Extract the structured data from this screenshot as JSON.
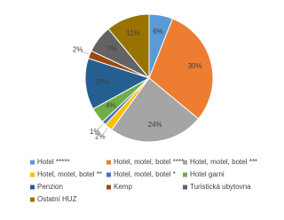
{
  "chart_data": {
    "type": "pie",
    "categories": [
      "Hotel *****",
      "Hotel, motel, botel ****",
      "Hotel, motel, botel ***",
      "Hotel, motel, botel **",
      "Hotel, motel, botel *",
      "Hotel garni",
      "Penzion",
      "Kemp",
      "Turistická ubytovna",
      "Ostatní HUZ"
    ],
    "values": [
      6,
      30,
      24,
      2,
      1,
      4,
      13,
      2,
      7,
      11
    ],
    "value_labels": [
      "6%",
      "30%",
      "24%",
      "2%",
      "1%",
      "4%",
      "13%",
      "2%",
      "7%",
      "11%"
    ],
    "colors": [
      "#5B9BD5",
      "#ED7D31",
      "#A5A5A5",
      "#FFC000",
      "#4472C4",
      "#70AD47",
      "#255E91",
      "#9E480E",
      "#636363",
      "#997300"
    ],
    "legend": "bottom"
  }
}
